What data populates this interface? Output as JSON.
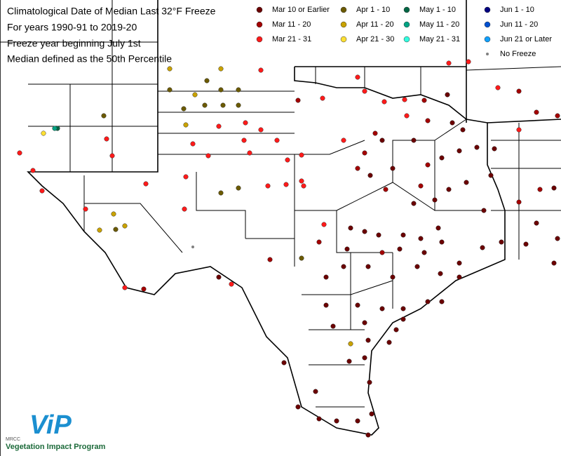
{
  "header": {
    "title": "Climatological Date of Median Last 32°F Freeze",
    "period": "For years 1990-91 to 2019-20",
    "freeze_year": "Freeze year beginning July 1st",
    "median_def": "Median defined as the 50th Percentile"
  },
  "legend": {
    "items": [
      {
        "label": "Mar 10 or Earlier",
        "color": "#6b0000"
      },
      {
        "label": "Mar 11 - 20",
        "color": "#a30000"
      },
      {
        "label": "Mar 21 - 31",
        "color": "#ff1a1a"
      },
      {
        "label": "Apr 1 - 10",
        "color": "#6b5a00"
      },
      {
        "label": "Apr 11 - 20",
        "color": "#c9a200"
      },
      {
        "label": "Apr 21 - 30",
        "color": "#ffe033"
      },
      {
        "label": "May 1 - 10",
        "color": "#006644"
      },
      {
        "label": "May 11 - 20",
        "color": "#00a383"
      },
      {
        "label": "May 21 - 31",
        "color": "#33ffe0"
      },
      {
        "label": "Jun 1 - 10",
        "color": "#000080"
      },
      {
        "label": "Jun 11 - 20",
        "color": "#0050d0"
      },
      {
        "label": "Jun 21 or Later",
        "color": "#10a0ff"
      },
      {
        "label": "No Freeze",
        "color": "#808080"
      }
    ]
  },
  "logo": {
    "text": "ViP",
    "org": "MRCC",
    "caption": "Vegetation Impact Program"
  }
}
